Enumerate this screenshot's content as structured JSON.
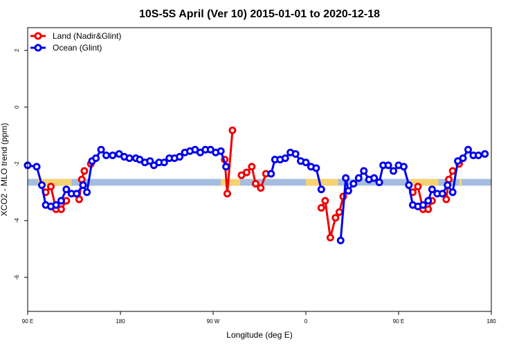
{
  "chart_data": {
    "type": "line",
    "title": "10S-5S April (Ver 10)   2015-01-01 to 2020-12-18",
    "xlabel": "Longitude (deg E)",
    "ylabel": "XCO2 - MLO trend (ppm)",
    "xlim": [
      90,
      450
    ],
    "ylim": [
      -7.2,
      2.8
    ],
    "x_ticks": [
      {
        "value": 90,
        "label": "90 E"
      },
      {
        "value": 162,
        "label": "180"
      },
      {
        "value": 234,
        "label": "90 W"
      },
      {
        "value": 306,
        "label": "0"
      },
      {
        "value": 378,
        "label": "90 E"
      },
      {
        "value": 450,
        "label": "180"
      }
    ],
    "y_ticks": [
      {
        "value": 2,
        "label": "2"
      },
      {
        "value": 0,
        "label": "0"
      },
      {
        "value": -2,
        "label": "-2"
      },
      {
        "value": -4,
        "label": "-4"
      },
      {
        "value": -6,
        "label": "-6"
      }
    ],
    "legend_position": "top-left",
    "reference_band": {
      "y_range": [
        -2.53,
        -2.77
      ],
      "color": "#a4bde0",
      "land_color": "#f6d272",
      "land_x_ranges": [
        [
          98,
          124
        ],
        [
          240,
          255
        ],
        [
          306,
          331
        ],
        [
          386,
          409
        ],
        [
          425,
          427
        ]
      ]
    },
    "series": [
      {
        "name": "Land (Nadir&Glint)",
        "color": "#ee0000",
        "segments": [
          [
            [
              104,
              -3.0
            ],
            [
              108,
              -2.8
            ],
            [
              112,
              -3.6
            ],
            [
              116,
              -3.6
            ],
            [
              120,
              -3.3
            ]
          ],
          [
            [
              130,
              -3.25
            ],
            [
              132,
              -2.55
            ],
            [
              134,
              -2.25
            ]
          ],
          [
            [
              139,
              -2.0
            ]
          ],
          [
            [
              243,
              -1.85
            ],
            [
              245,
              -3.05
            ],
            [
              249,
              -0.82
            ]
          ],
          [
            [
              256,
              -2.4
            ],
            [
              260,
              -2.3
            ],
            [
              264,
              -2.1
            ],
            [
              267,
              -2.7
            ],
            [
              271,
              -2.85
            ],
            [
              275,
              -2.35
            ]
          ],
          [
            [
              318,
              -3.55
            ],
            [
              321,
              -3.3
            ],
            [
              325,
              -4.6
            ],
            [
              329,
              -3.9
            ],
            [
              332,
              -3.7
            ],
            [
              335,
              -3.15
            ]
          ],
          [
            [
              389,
              -3.0
            ],
            [
              393,
              -2.8
            ],
            [
              397,
              -3.6
            ],
            [
              401,
              -3.6
            ],
            [
              404,
              -3.3
            ]
          ],
          [
            [
              415,
              -3.25
            ],
            [
              417,
              -2.55
            ],
            [
              420,
              -2.25
            ]
          ],
          [
            [
              425,
              -2.0
            ]
          ]
        ]
      },
      {
        "name": "Ocean (Glint)",
        "color": "#0000ee",
        "points": [
          [
            90,
            -2.05
          ],
          [
            97,
            -2.1
          ],
          [
            101,
            -2.75
          ],
          [
            104,
            -3.45
          ],
          [
            108,
            -3.5
          ],
          [
            112,
            -3.45
          ],
          [
            116,
            -3.3
          ],
          [
            120,
            -2.9
          ],
          [
            124,
            -3.05
          ],
          [
            128,
            -3.05
          ],
          [
            133,
            -2.75
          ],
          [
            136,
            -3.0
          ],
          [
            140,
            -1.9
          ],
          [
            143,
            -1.8
          ],
          [
            147,
            -1.5
          ],
          [
            151,
            -1.7
          ],
          [
            156,
            -1.7
          ],
          [
            161,
            -1.65
          ],
          [
            165,
            -1.75
          ],
          [
            169,
            -1.8
          ],
          [
            174,
            -1.8
          ],
          [
            177,
            -1.85
          ],
          [
            181,
            -1.95
          ],
          [
            185,
            -1.9
          ],
          [
            188,
            -2.05
          ],
          [
            192,
            -1.95
          ],
          [
            196,
            -1.95
          ],
          [
            200,
            -1.8
          ],
          [
            204,
            -1.8
          ],
          [
            208,
            -1.75
          ],
          [
            212,
            -1.6
          ],
          [
            216,
            -1.55
          ],
          [
            220,
            -1.5
          ],
          [
            224,
            -1.6
          ],
          [
            228,
            -1.5
          ],
          [
            232,
            -1.5
          ],
          [
            236,
            -1.6
          ],
          [
            240,
            -1.55
          ],
          [
            244,
            -2.1
          ],
          null,
          [
            279,
            -2.35
          ],
          [
            282,
            -1.85
          ],
          [
            286,
            -1.85
          ],
          [
            290,
            -1.8
          ],
          [
            294,
            -1.6
          ],
          [
            298,
            -1.65
          ],
          [
            302,
            -1.9
          ],
          [
            306,
            -1.95
          ],
          [
            310,
            -2.1
          ],
          [
            314,
            -2.15
          ],
          [
            318,
            -2.9
          ],
          null,
          [
            333,
            -4.7
          ],
          [
            337,
            -2.5
          ],
          [
            339,
            -2.95
          ],
          [
            343,
            -2.7
          ],
          [
            347,
            -2.5
          ],
          [
            351,
            -2.25
          ],
          [
            355,
            -2.55
          ],
          [
            359,
            -2.5
          ],
          [
            363,
            -2.65
          ],
          [
            366,
            -2.05
          ],
          [
            370,
            -2.05
          ],
          [
            374,
            -2.25
          ],
          [
            378,
            -2.05
          ],
          [
            382,
            -2.1
          ],
          [
            386,
            -2.75
          ],
          [
            389,
            -3.45
          ],
          [
            393,
            -3.5
          ],
          [
            397,
            -3.45
          ],
          [
            401,
            -3.3
          ],
          [
            404,
            -2.9
          ],
          [
            408,
            -3.05
          ],
          [
            412,
            -3.05
          ],
          [
            416,
            -2.75
          ],
          [
            420,
            -3.0
          ],
          [
            424,
            -1.9
          ],
          [
            428,
            -1.8
          ],
          [
            432,
            -1.5
          ],
          [
            436,
            -1.7
          ],
          [
            440,
            -1.7
          ],
          [
            445,
            -1.65
          ]
        ]
      }
    ]
  }
}
